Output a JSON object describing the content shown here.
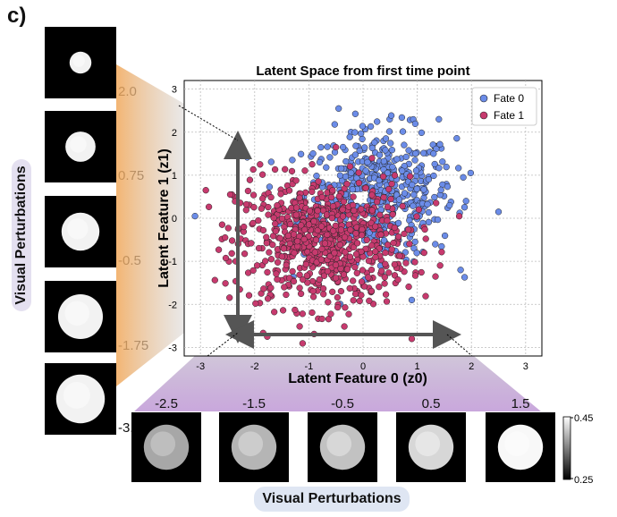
{
  "panel_label": "c)",
  "left_perturbations": {
    "label": "Visual Perturbations",
    "values": [
      "2.0",
      "0.75",
      "-0.5",
      "-1.75",
      "-3.0"
    ],
    "blob_scale": [
      0.45,
      0.62,
      0.78,
      0.92,
      1.0
    ]
  },
  "bottom_perturbations": {
    "label": "Visual Perturbations",
    "values": [
      "-2.5",
      "-1.5",
      "-0.5",
      "0.5",
      "1.5"
    ],
    "brightness": [
      0.35,
      0.45,
      0.55,
      0.7,
      0.95
    ]
  },
  "colorbar": {
    "max_label": "0.45",
    "min_label": "0.25"
  },
  "chart_data": {
    "type": "scatter",
    "title": "Latent Space from first time point",
    "xlabel": "Latent Feature 0 (z0)",
    "ylabel": "Latent Feature 1 (z1)",
    "xlim": [
      -3.3,
      3.3
    ],
    "ylim": [
      -3.2,
      3.2
    ],
    "xticks": [
      "-3",
      "-2",
      "-1",
      "0",
      "1",
      "2",
      "3"
    ],
    "yticks": [
      "3",
      "2",
      "1",
      "0",
      "-1",
      "-2",
      "-3"
    ],
    "grid": true,
    "legend_position": "top-right",
    "series": [
      {
        "name": "Fate 0",
        "color": "#6b8ce8",
        "center": [
          0.3,
          0.55
        ],
        "spread": [
          0.7,
          0.75
        ],
        "count": 520,
        "outliers": [
          [
            2.5,
            0.15
          ],
          [
            1.85,
            0.95
          ],
          [
            1.9,
            0.4
          ],
          [
            -0.45,
            2.55
          ],
          [
            1.4,
            2.3
          ],
          [
            1.3,
            1.5
          ],
          [
            -0.8,
            1.3
          ],
          [
            1.8,
            -1.2
          ],
          [
            0.9,
            -1.9
          ],
          [
            -3.1,
            0.05
          ]
        ]
      },
      {
        "name": "Fate 1",
        "color": "#c73a6e",
        "center": [
          -0.75,
          -0.55
        ],
        "spread": [
          0.8,
          0.75
        ],
        "count": 720,
        "outliers": [
          [
            -2.9,
            0.65
          ],
          [
            -2.35,
            -1.0
          ],
          [
            -2.45,
            0.55
          ],
          [
            -1.9,
            1.25
          ],
          [
            -2.6,
            -0.15
          ],
          [
            0.9,
            -2.8
          ],
          [
            -0.5,
            1.65
          ],
          [
            -2.2,
            -0.2
          ]
        ]
      }
    ]
  }
}
